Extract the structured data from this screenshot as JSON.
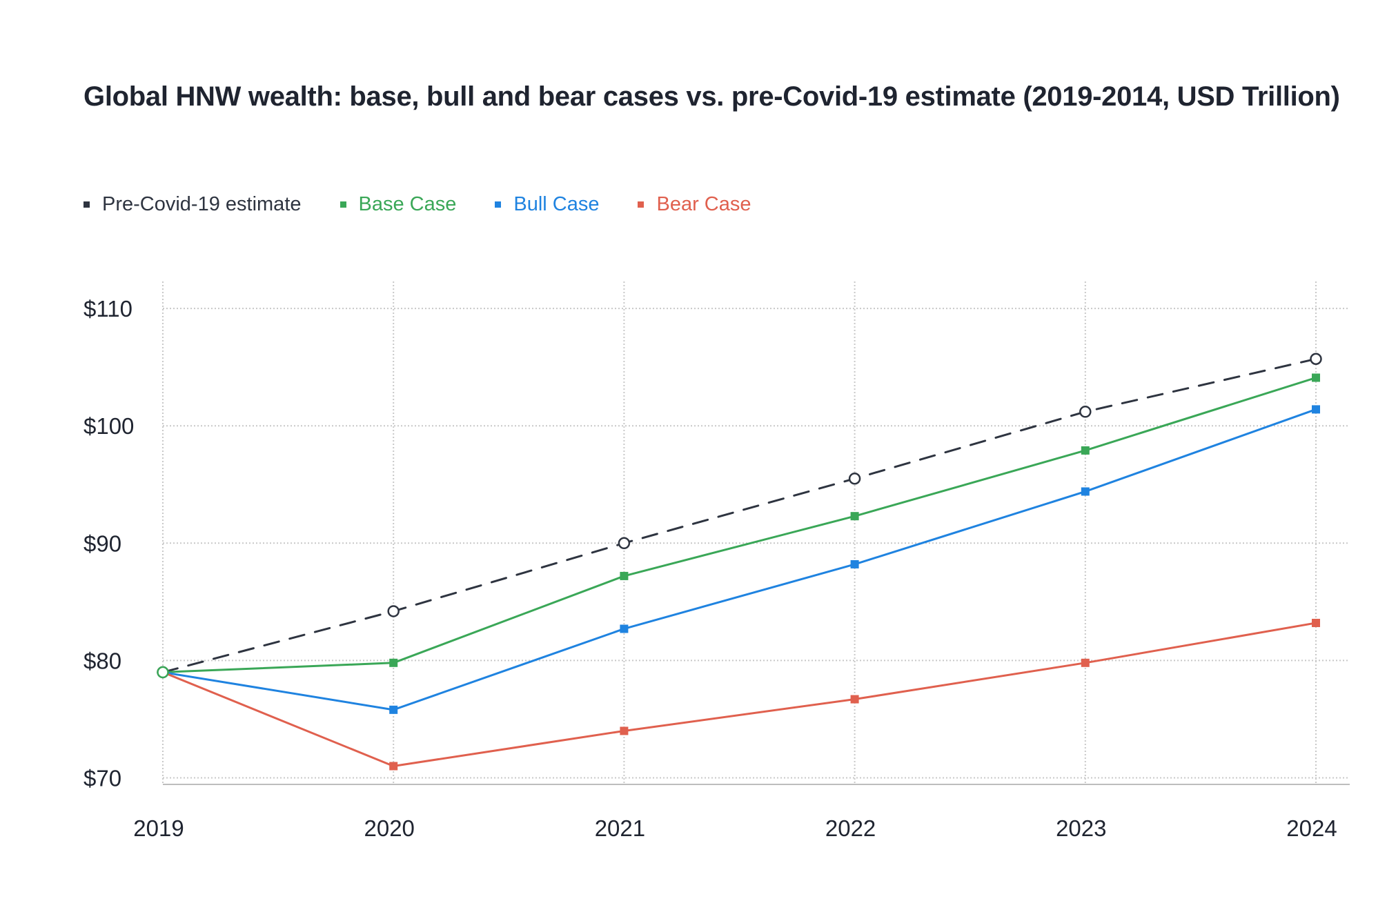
{
  "chart_data": {
    "type": "line",
    "title": "Global HNW wealth: base, bull and bear cases vs. pre-Covid-19 estimate (2019-2014, USD Trillion)",
    "x": [
      "2019",
      "2020",
      "2021",
      "2022",
      "2023",
      "2024"
    ],
    "y_ticks": [
      {
        "value": 70,
        "label": "$70"
      },
      {
        "value": 80,
        "label": "$80"
      },
      {
        "value": 90,
        "label": "$90"
      },
      {
        "value": 100,
        "label": "$100"
      },
      {
        "value": 110,
        "label": "$110"
      }
    ],
    "ylim": [
      69.5,
      112.3
    ],
    "grid": true,
    "legend_position": "top-left",
    "series": [
      {
        "name": "Pre-Covid-19 estimate",
        "key": "pre-covid-19-estimate",
        "color": "#2e3440",
        "dashed": true,
        "marker": "circle-open",
        "values": [
          79,
          84.2,
          90.0,
          95.5,
          101.2,
          105.7
        ]
      },
      {
        "name": "Base Case",
        "key": "base-case",
        "color": "#3aa757",
        "dashed": false,
        "marker": "square",
        "values": [
          79,
          79.8,
          87.2,
          92.3,
          97.9,
          104.1
        ]
      },
      {
        "name": "Bull Case",
        "key": "bull-case",
        "color": "#1f83e0",
        "dashed": false,
        "marker": "square",
        "values": [
          79,
          75.8,
          82.7,
          88.2,
          94.4,
          101.4
        ]
      },
      {
        "name": "Bear Case",
        "key": "bear-case",
        "color": "#e0604e",
        "dashed": false,
        "marker": "square",
        "values": [
          79,
          71.0,
          74.0,
          76.7,
          79.8,
          83.2
        ]
      }
    ]
  }
}
